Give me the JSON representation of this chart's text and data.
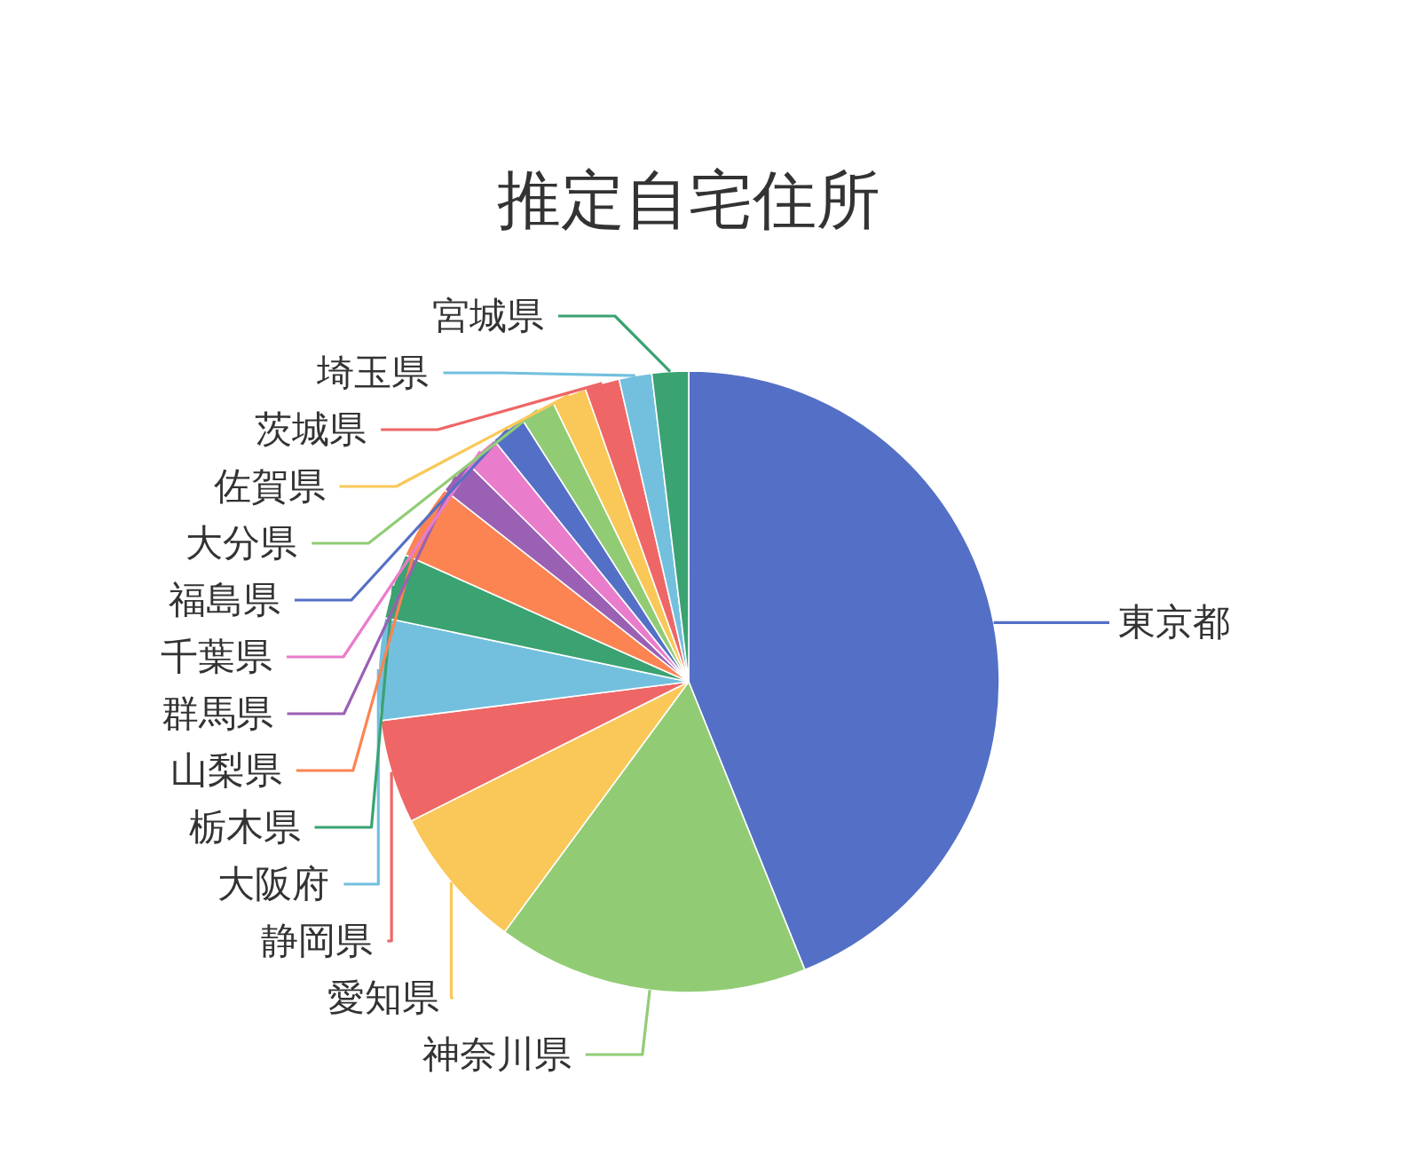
{
  "chart_data": {
    "type": "pie",
    "title": "推定自宅住所",
    "categories": [
      "東京都",
      "神奈川県",
      "愛知県",
      "静岡県",
      "大阪府",
      "栃木県",
      "山梨県",
      "群馬県",
      "千葉県",
      "福島県",
      "大分県",
      "佐賀県",
      "茨城県",
      "埼玉県",
      "宮城県"
    ],
    "values": [
      43.9,
      16.2,
      7.5,
      5.4,
      5.3,
      3.4,
      3.9,
      1.8,
      1.8,
      1.8,
      1.8,
      1.8,
      1.8,
      1.7,
      1.9
    ],
    "colors": [
      "#5470c6",
      "#91cc75",
      "#fac858",
      "#ee6666",
      "#73c0de",
      "#3ba272",
      "#fc8452",
      "#9a60b4",
      "#ea7ccc",
      "#5470c6",
      "#91cc75",
      "#fac858",
      "#ee6666",
      "#73c0de",
      "#3ba272"
    ],
    "legend": false
  }
}
